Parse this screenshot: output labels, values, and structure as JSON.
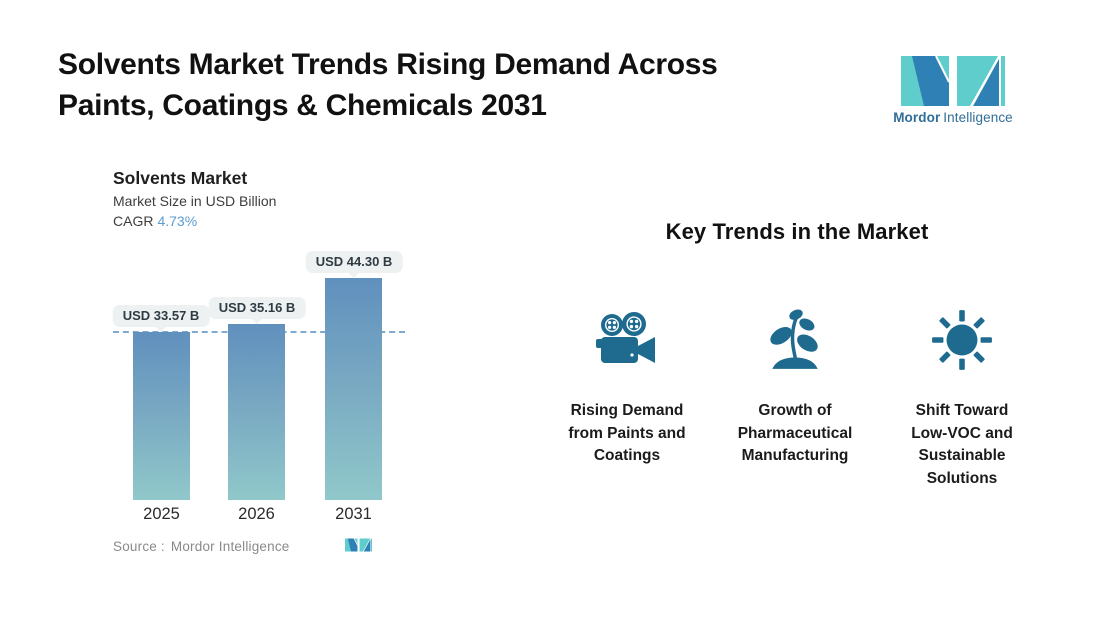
{
  "header": {
    "title_line1": "Solvents Market Trends Rising Demand Across",
    "title_line2": "Paints, Coatings & Chemicals 2031"
  },
  "brand": {
    "name_bold": "Mordor",
    "name_regular": "Intelligence",
    "colors": {
      "blue": "#2E80B5",
      "teal": "#5FCDCB",
      "text": "#2F6E99"
    }
  },
  "chart": {
    "title": "Solvents Market",
    "subtitle": "Market Size in USD Billion",
    "cagr_label": "CAGR",
    "cagr_value": "4.73%",
    "cagr_value_color": "#5C9BD1",
    "source_label": "Source :",
    "source_value": "Mordor Intelligence"
  },
  "chart_data": {
    "type": "bar",
    "title": "Solvents Market",
    "ylabel": "Market Size in USD Billion",
    "categories": [
      "2025",
      "2026",
      "2031"
    ],
    "values": [
      33.57,
      35.16,
      44.3
    ],
    "data_labels": [
      "USD 33.57 B",
      "USD 35.16 B",
      "USD 44.30 B"
    ],
    "cagr_pct": 4.73,
    "reference_line_value": 33.57,
    "ylim": [
      0,
      50
    ],
    "grid": false,
    "legend": "none",
    "bar_gradient_top": "#6090BD",
    "bar_gradient_bottom": "#90C8CA",
    "reference_line_color": "#7FA9D0"
  },
  "key_trends": {
    "heading": "Key Trends in the Market",
    "icon_color": "#1E6B8F",
    "items": [
      {
        "icon": "movie-camera-icon",
        "label": "Rising Demand from Paints and Coatings"
      },
      {
        "icon": "plant-sprout-icon",
        "label": "Growth of Pharmaceutical Manufacturing"
      },
      {
        "icon": "sun-icon",
        "label": "Shift Toward Low-VOC and Sustainable Solutions"
      }
    ]
  }
}
